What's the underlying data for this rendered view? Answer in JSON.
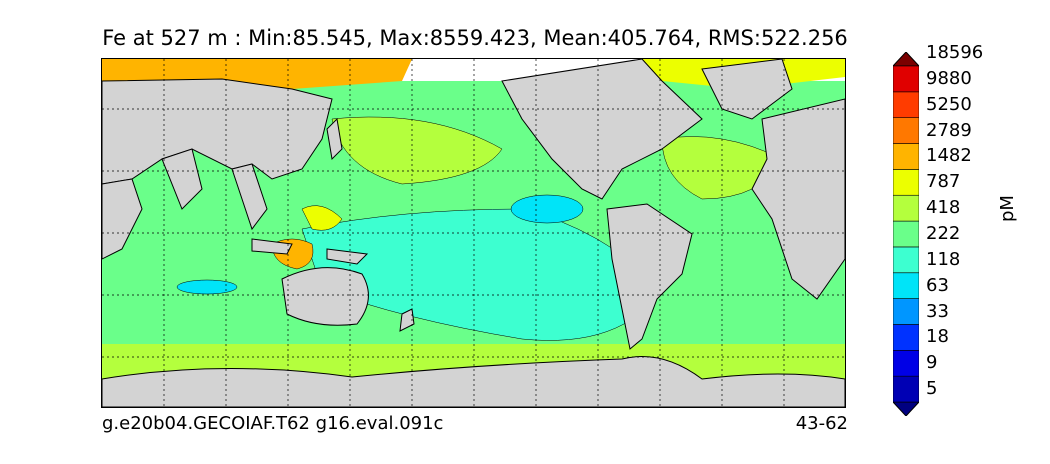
{
  "title": "Fe at 527 m : Min:85.545, Max:8559.423, Mean:405.764, RMS:522.256",
  "footer": {
    "case_id": "g.e20b04.GECOIAF.T62 g16.eval.091c",
    "year_range": "43-62"
  },
  "colorbar": {
    "units": "pM",
    "levels": [
      "5",
      "9",
      "18",
      "33",
      "63",
      "118",
      "222",
      "418",
      "787",
      "1482",
      "2789",
      "5250",
      "9880",
      "18596"
    ],
    "colors": [
      "#000080",
      "#0000b4",
      "#0000e6",
      "#0032ff",
      "#0096ff",
      "#00e4f8",
      "#3dffd0",
      "#6aff8a",
      "#b4ff3d",
      "#ecff00",
      "#ffb400",
      "#ff7800",
      "#ff3c00",
      "#e00000",
      "#7a0000"
    ],
    "extend": "both"
  },
  "map": {
    "land_color": "#d3d3d3",
    "grid": "dotted"
  }
}
